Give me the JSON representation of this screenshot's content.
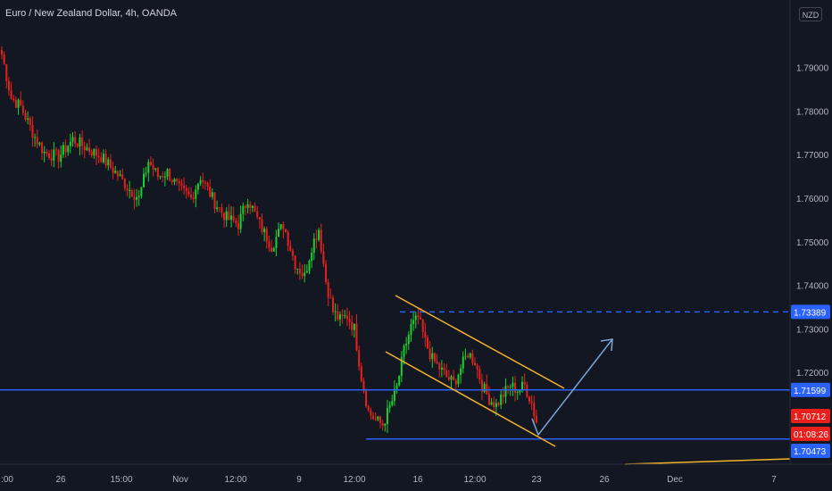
{
  "header": {
    "title": "Euro / New Zealand Dollar, 4h, OANDA"
  },
  "currency": "NZD",
  "colors": {
    "background": "#131722",
    "up": "#26a69a",
    "up_bright": "#17d22e",
    "down": "#e8201c",
    "grid": "#1e222d",
    "axis_text": "#b2b5be",
    "hline": "#2962ff",
    "channel": "#f5b32b",
    "arrow": "#7aa7d6",
    "last_price_bg": "#e8201c"
  },
  "chart_data": {
    "type": "candlestick",
    "title": "Euro / New Zealand Dollar, 4h, OANDA",
    "x_ticks": [
      ":00",
      "26",
      "15:00",
      "Nov",
      "12:00",
      "9",
      "12:00",
      "16",
      "12:00",
      "23",
      "26",
      "Dec",
      "7"
    ],
    "y_ticks": [
      "1.79000",
      "1.78000",
      "1.77000",
      "1.76000",
      "1.75000",
      "1.74000",
      "1.73000",
      "1.72000",
      "1.71000"
    ],
    "ylim": [
      1.7005,
      1.8055
    ],
    "grid": false,
    "price_trend": [
      [
        0,
        1.793
      ],
      [
        4,
        1.783
      ],
      [
        8,
        1.781
      ],
      [
        14,
        1.774
      ],
      [
        18,
        1.7705
      ],
      [
        24,
        1.7695
      ],
      [
        30,
        1.7735
      ],
      [
        36,
        1.7715
      ],
      [
        42,
        1.7695
      ],
      [
        48,
        1.766
      ],
      [
        54,
        1.762
      ],
      [
        58,
        1.76
      ],
      [
        62,
        1.7685
      ],
      [
        66,
        1.765
      ],
      [
        70,
        1.766
      ],
      [
        75,
        1.762
      ],
      [
        80,
        1.76
      ],
      [
        84,
        1.765
      ],
      [
        90,
        1.759
      ],
      [
        95,
        1.7555
      ],
      [
        100,
        1.754
      ],
      [
        104,
        1.76
      ],
      [
        109,
        1.754
      ],
      [
        114,
        1.749
      ],
      [
        119,
        1.754
      ],
      [
        124,
        1.745
      ],
      [
        128,
        1.742
      ],
      [
        131,
        1.749
      ],
      [
        134,
        1.753
      ],
      [
        137,
        1.741
      ],
      [
        140,
        1.734
      ],
      [
        143,
        1.732
      ],
      [
        146,
        1.733
      ],
      [
        149,
        1.73
      ],
      [
        152,
        1.719
      ],
      [
        155,
        1.711
      ],
      [
        158,
        1.709
      ],
      [
        161,
        1.708
      ],
      [
        164,
        1.712
      ],
      [
        167,
        1.7165
      ],
      [
        170,
        1.725
      ],
      [
        173,
        1.7305
      ],
      [
        176,
        1.7325
      ],
      [
        179,
        1.727
      ],
      [
        182,
        1.723
      ],
      [
        185,
        1.721
      ],
      [
        188,
        1.719
      ],
      [
        191,
        1.7175
      ],
      [
        194,
        1.721
      ],
      [
        197,
        1.7245
      ],
      [
        200,
        1.7225
      ],
      [
        203,
        1.717
      ],
      [
        206,
        1.714
      ],
      [
        209,
        1.7125
      ],
      [
        212,
        1.715
      ],
      [
        215,
        1.717
      ],
      [
        218,
        1.716
      ],
      [
        221,
        1.717
      ],
      [
        224,
        1.713
      ],
      [
        226,
        1.7085
      ]
    ],
    "horizontal_levels": [
      {
        "price": 1.73389,
        "label": "1.73389",
        "style": "dashed"
      },
      {
        "price": 1.71599,
        "label": "1.71599",
        "style": "solid"
      },
      {
        "price": 1.70473,
        "label": "1.70473",
        "style": "solid"
      }
    ],
    "last_price": {
      "label": "1.70712",
      "countdown": "01:08:26",
      "price": 1.70712
    },
    "annotations": [
      "descending channel (two parallel lines)",
      "projected reversal arrow from channel bottom up toward 1.7255"
    ]
  }
}
